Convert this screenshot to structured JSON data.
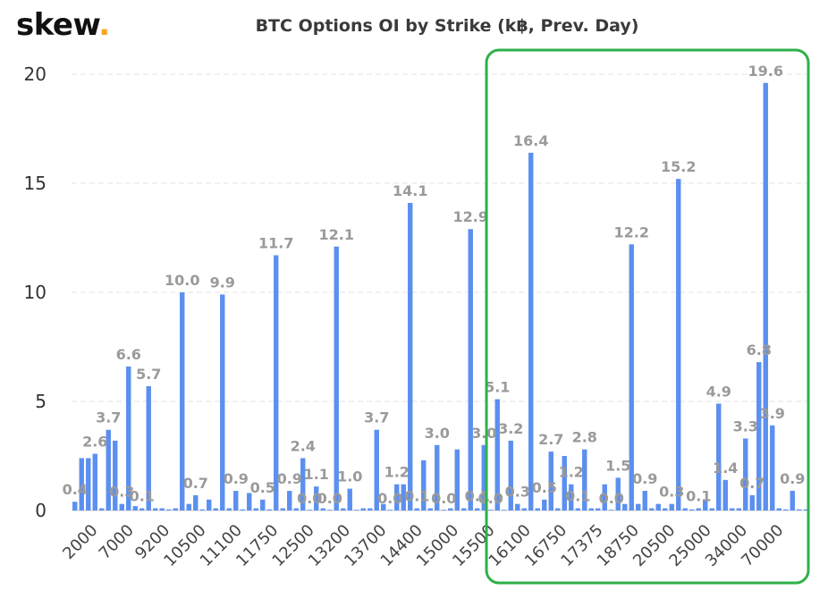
{
  "brand": {
    "logo_text": "skew",
    "logo_dot": ".",
    "accent_color": "#f5a623"
  },
  "colors": {
    "bar": "#5b8ff0",
    "highlight_box": "#2fb04a",
    "gridline": "#e3e3e3"
  },
  "chart_data": {
    "type": "bar",
    "title": "BTC Options OI by Strike (k฿, Prev. Day)",
    "xlabel": "",
    "ylabel": "",
    "ylim": [
      0,
      20
    ],
    "yticks": [
      0,
      5,
      10,
      15,
      20
    ],
    "grid": true,
    "legend": "none",
    "x_tick_labels": [
      "2000",
      "7000",
      "9200",
      "10500",
      "11100",
      "11750",
      "12500",
      "13200",
      "13700",
      "14400",
      "15000",
      "15500",
      "16100",
      "16750",
      "17375",
      "18750",
      "20500",
      "25000",
      "34000",
      "70000"
    ],
    "values": [
      0.4,
      2.4,
      2.4,
      2.6,
      0.1,
      3.7,
      3.2,
      0.3,
      6.6,
      0.2,
      0.1,
      5.7,
      0.1,
      0.1,
      0.05,
      0.1,
      10.0,
      0.3,
      0.7,
      0.05,
      0.5,
      0.1,
      9.9,
      0.1,
      0.9,
      0.05,
      0.8,
      0.1,
      0.5,
      0.05,
      11.7,
      0.1,
      0.9,
      0.1,
      2.4,
      0.0,
      1.1,
      0.1,
      0.0,
      12.1,
      0.1,
      1.0,
      0.0,
      0.1,
      0.1,
      3.7,
      0.3,
      0.0,
      1.2,
      1.2,
      14.1,
      0.1,
      2.3,
      0.1,
      3.0,
      0.0,
      0.1,
      2.8,
      0.1,
      12.9,
      0.1,
      3.0,
      0.0,
      5.1,
      0.0,
      3.2,
      0.3,
      0.1,
      16.4,
      0.1,
      0.5,
      2.7,
      0.1,
      2.5,
      1.2,
      0.1,
      2.8,
      0.1,
      0.1,
      1.2,
      0.0,
      1.5,
      0.3,
      12.2,
      0.3,
      0.9,
      0.1,
      0.3,
      0.1,
      0.3,
      15.2,
      0.1,
      0.05,
      0.1,
      0.5,
      0.1,
      4.9,
      1.4,
      0.1,
      0.1,
      3.3,
      0.7,
      6.8,
      19.6,
      3.9,
      0.1,
      0.05,
      0.9,
      0.05,
      0.05
    ],
    "data_labels": [
      {
        "bar": 0,
        "text": "0.4"
      },
      {
        "bar": 3,
        "text": "2.6"
      },
      {
        "bar": 5,
        "text": "3.7"
      },
      {
        "bar": 7,
        "text": "0.3"
      },
      {
        "bar": 8,
        "text": "6.6"
      },
      {
        "bar": 10,
        "text": "0.1"
      },
      {
        "bar": 11,
        "text": "5.7"
      },
      {
        "bar": 16,
        "text": "10.0"
      },
      {
        "bar": 18,
        "text": "0.7"
      },
      {
        "bar": 22,
        "text": "9.9"
      },
      {
        "bar": 24,
        "text": "0.9"
      },
      {
        "bar": 28,
        "text": "0.5"
      },
      {
        "bar": 30,
        "text": "11.7"
      },
      {
        "bar": 32,
        "text": "0.9"
      },
      {
        "bar": 34,
        "text": "2.4"
      },
      {
        "bar": 35,
        "text": "0.0"
      },
      {
        "bar": 36,
        "text": "1.1"
      },
      {
        "bar": 38,
        "text": "0.0"
      },
      {
        "bar": 39,
        "text": "12.1"
      },
      {
        "bar": 41,
        "text": "1.0"
      },
      {
        "bar": 45,
        "text": "3.7"
      },
      {
        "bar": 47,
        "text": "0.0"
      },
      {
        "bar": 48,
        "text": "1.2"
      },
      {
        "bar": 50,
        "text": "14.1"
      },
      {
        "bar": 51,
        "text": "0.1"
      },
      {
        "bar": 54,
        "text": "3.0"
      },
      {
        "bar": 55,
        "text": "0.0"
      },
      {
        "bar": 59,
        "text": "12.9"
      },
      {
        "bar": 60,
        "text": "0.1"
      },
      {
        "bar": 61,
        "text": "3.0"
      },
      {
        "bar": 62,
        "text": "0.0"
      },
      {
        "bar": 63,
        "text": "5.1"
      },
      {
        "bar": 65,
        "text": "3.2"
      },
      {
        "bar": 66,
        "text": "0.3"
      },
      {
        "bar": 68,
        "text": "16.4"
      },
      {
        "bar": 70,
        "text": "0.5"
      },
      {
        "bar": 71,
        "text": "2.7"
      },
      {
        "bar": 74,
        "text": "1.2"
      },
      {
        "bar": 75,
        "text": "0.1"
      },
      {
        "bar": 76,
        "text": "2.8"
      },
      {
        "bar": 80,
        "text": "0.0"
      },
      {
        "bar": 81,
        "text": "1.5"
      },
      {
        "bar": 83,
        "text": "12.2"
      },
      {
        "bar": 85,
        "text": "0.9"
      },
      {
        "bar": 89,
        "text": "0.3"
      },
      {
        "bar": 90,
        "text": "15.2"
      },
      {
        "bar": 93,
        "text": "0.1"
      },
      {
        "bar": 96,
        "text": "4.9"
      },
      {
        "bar": 97,
        "text": "1.4"
      },
      {
        "bar": 100,
        "text": "3.3"
      },
      {
        "bar": 101,
        "text": "0.7"
      },
      {
        "bar": 102,
        "text": "6.8"
      },
      {
        "bar": 103,
        "text": "19.6"
      },
      {
        "bar": 104,
        "text": "3.9"
      },
      {
        "bar": 107,
        "text": "0.9"
      }
    ],
    "highlight_box": {
      "from_tick": "15500",
      "to_tick": "70000"
    }
  }
}
